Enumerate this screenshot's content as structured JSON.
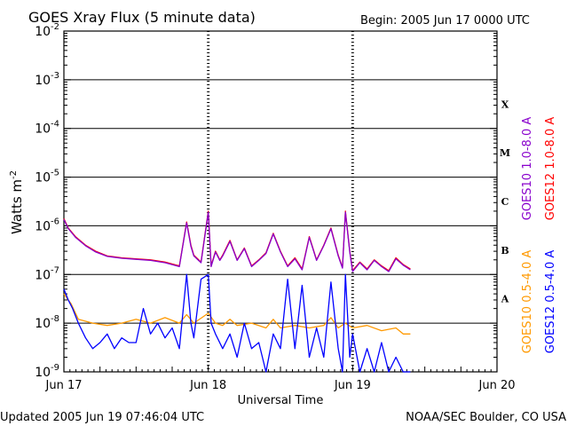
{
  "chart_data": {
    "type": "line",
    "title": "GOES Xray Flux (5 minute data)",
    "begin_label": "Begin:  2005 Jun 17 0000 UTC",
    "xlabel": "Universal Time",
    "ylabel_base": "Watts m",
    "ylabel_exp": "-2",
    "x_ticks": [
      "Jun 17",
      "Jun 18",
      "Jun 19",
      "Jun 20"
    ],
    "y_ticks": [
      {
        "base": "10",
        "exp": "-2"
      },
      {
        "base": "10",
        "exp": "-3"
      },
      {
        "base": "10",
        "exp": "-4"
      },
      {
        "base": "10",
        "exp": "-5"
      },
      {
        "base": "10",
        "exp": "-6"
      },
      {
        "base": "10",
        "exp": "-7"
      },
      {
        "base": "10",
        "exp": "-8"
      },
      {
        "base": "10",
        "exp": "-9"
      }
    ],
    "xlim": [
      0,
      3
    ],
    "ylim_log10": [
      -9,
      -2
    ],
    "flare_classes": [
      "X",
      "M",
      "C",
      "B",
      "A"
    ],
    "grid": true,
    "log_scale_y": true,
    "series": [
      {
        "name": "GOES12 1.0-8.0 A",
        "color": "#ff0000",
        "x": [
          0,
          0.03,
          0.08,
          0.15,
          0.22,
          0.3,
          0.4,
          0.5,
          0.6,
          0.7,
          0.8,
          0.85,
          0.88,
          0.9,
          0.95,
          1.0,
          1.02,
          1.05,
          1.08,
          1.1,
          1.15,
          1.2,
          1.25,
          1.3,
          1.35,
          1.4,
          1.45,
          1.5,
          1.55,
          1.6,
          1.65,
          1.7,
          1.75,
          1.8,
          1.85,
          1.9,
          1.93,
          1.95,
          1.98,
          2.0,
          2.05,
          2.1,
          2.15,
          2.2,
          2.25,
          2.3,
          2.35,
          2.4
        ],
        "y": [
          1.4e-06,
          9e-07,
          6e-07,
          4e-07,
          3e-07,
          2.4e-07,
          2.2e-07,
          2.1e-07,
          2e-07,
          1.8e-07,
          1.5e-07,
          1.2e-06,
          4e-07,
          2.5e-07,
          1.8e-07,
          2e-06,
          1.5e-07,
          3e-07,
          2e-07,
          2.5e-07,
          5e-07,
          2e-07,
          3.5e-07,
          1.5e-07,
          2e-07,
          2.8e-07,
          7e-07,
          3e-07,
          1.5e-07,
          2.2e-07,
          1.3e-07,
          6e-07,
          2e-07,
          4e-07,
          9e-07,
          2.5e-07,
          1.4e-07,
          2e-06,
          3e-07,
          1.2e-07,
          1.8e-07,
          1.3e-07,
          2e-07,
          1.5e-07,
          1.2e-07,
          2.2e-07,
          1.6e-07,
          1.3e-07
        ]
      },
      {
        "name": "GOES10 1.0-8.0 A",
        "color": "#8800cc",
        "x": [
          0,
          0.03,
          0.08,
          0.15,
          0.22,
          0.3,
          0.4,
          0.5,
          0.6,
          0.7,
          0.8,
          0.85,
          0.88,
          0.9,
          0.95,
          1.0,
          1.02,
          1.05,
          1.08,
          1.1,
          1.15,
          1.2,
          1.25,
          1.3,
          1.35,
          1.4,
          1.45,
          1.5,
          1.55,
          1.6,
          1.65,
          1.7,
          1.75,
          1.8,
          1.85,
          1.9,
          1.93,
          1.95,
          1.98,
          2.0,
          2.05,
          2.1,
          2.15,
          2.2,
          2.25,
          2.3,
          2.35,
          2.4
        ],
        "y": [
          1.35e-06,
          8.8e-07,
          5.8e-07,
          3.9e-07,
          2.9e-07,
          2.35e-07,
          2.15e-07,
          2.05e-07,
          1.95e-07,
          1.75e-07,
          1.45e-07,
          1.15e-06,
          3.8e-07,
          2.4e-07,
          1.75e-07,
          1.9e-06,
          1.45e-07,
          2.9e-07,
          1.95e-07,
          2.4e-07,
          4.8e-07,
          1.95e-07,
          3.4e-07,
          1.45e-07,
          1.95e-07,
          2.7e-07,
          6.8e-07,
          2.9e-07,
          1.45e-07,
          2.1e-07,
          1.25e-07,
          5.8e-07,
          1.95e-07,
          3.9e-07,
          8.7e-07,
          2.4e-07,
          1.35e-07,
          1.9e-06,
          2.9e-07,
          1.15e-07,
          1.75e-07,
          1.25e-07,
          1.95e-07,
          1.45e-07,
          1.15e-07,
          2.1e-07,
          1.55e-07,
          1.25e-07
        ]
      },
      {
        "name": "GOES10 0.5-4.0 A",
        "color": "#ff9900",
        "x": [
          0,
          0.05,
          0.1,
          0.2,
          0.3,
          0.4,
          0.5,
          0.6,
          0.7,
          0.8,
          0.85,
          0.9,
          1.0,
          1.05,
          1.1,
          1.15,
          1.2,
          1.3,
          1.4,
          1.45,
          1.5,
          1.6,
          1.7,
          1.8,
          1.85,
          1.9,
          1.95,
          2.0,
          2.1,
          2.2,
          2.3,
          2.35,
          2.4
        ],
        "y": [
          4e-08,
          2.5e-08,
          1.2e-08,
          1e-08,
          9e-09,
          1e-08,
          1.2e-08,
          1e-08,
          1.3e-08,
          1e-08,
          1.5e-08,
          1e-08,
          1.6e-08,
          1e-08,
          9e-09,
          1.2e-08,
          9e-09,
          1e-08,
          8e-09,
          1.2e-08,
          8e-09,
          9e-09,
          8e-09,
          9e-09,
          1.3e-08,
          8e-09,
          1e-08,
          8e-09,
          9e-09,
          7e-09,
          8e-09,
          6e-09,
          6e-09
        ]
      },
      {
        "name": "GOES12 0.5-4.0 A",
        "color": "#0000ff",
        "x": [
          0,
          0.03,
          0.06,
          0.1,
          0.15,
          0.2,
          0.25,
          0.3,
          0.35,
          0.4,
          0.45,
          0.5,
          0.55,
          0.6,
          0.65,
          0.7,
          0.75,
          0.8,
          0.85,
          0.88,
          0.9,
          0.95,
          1.0,
          1.02,
          1.05,
          1.1,
          1.15,
          1.2,
          1.25,
          1.3,
          1.35,
          1.4,
          1.45,
          1.5,
          1.55,
          1.6,
          1.65,
          1.7,
          1.75,
          1.8,
          1.85,
          1.9,
          1.93,
          1.95,
          1.98,
          2.0,
          2.05,
          2.1,
          2.15,
          2.2,
          2.25,
          2.3,
          2.35,
          2.4
        ],
        "y": [
          5e-08,
          3e-08,
          2e-08,
          1e-08,
          5e-09,
          3e-09,
          4e-09,
          6e-09,
          3e-09,
          5e-09,
          4e-09,
          4e-09,
          2e-08,
          6e-09,
          1e-08,
          5e-09,
          8e-09,
          3e-09,
          1e-07,
          1e-08,
          5e-09,
          8e-08,
          1e-07,
          1e-08,
          6e-09,
          3e-09,
          6e-09,
          2e-09,
          1e-08,
          3e-09,
          4e-09,
          1e-09,
          6e-09,
          3e-09,
          8e-08,
          3e-09,
          6e-08,
          2e-09,
          8e-09,
          2e-09,
          7e-08,
          3e-09,
          1e-09,
          1e-07,
          2e-09,
          6e-09,
          1e-09,
          3e-09,
          1e-09,
          4e-09,
          1e-09,
          2e-09,
          1e-09,
          1e-09
        ]
      }
    ]
  },
  "footer": {
    "updated": "Updated 2005 Jun 19 07:46:04 UTC",
    "source": "NOAA/SEC Boulder, CO USA"
  }
}
